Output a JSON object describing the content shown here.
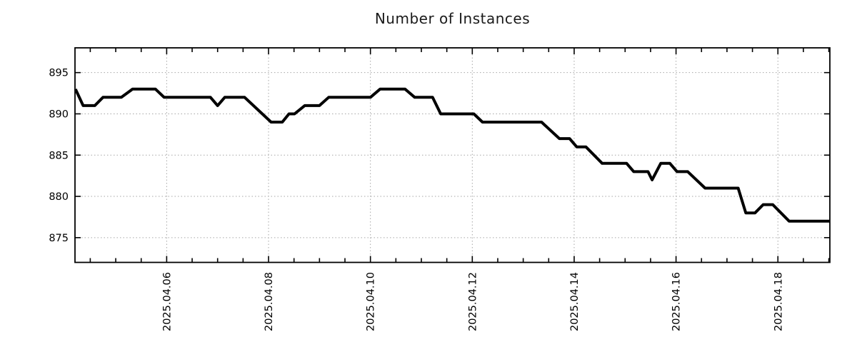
{
  "chart_data": {
    "type": "line",
    "title": "Number of Instances",
    "xlabel": "",
    "ylabel": "",
    "legend": "none",
    "grid": "dotted-major",
    "x_unit": "day of April 2025 (decimal)",
    "x_range": [
      4.2,
      19.02
    ],
    "y_range": [
      872,
      898
    ],
    "x_major_ticks": [
      {
        "value": 6,
        "label": "2025.04.06"
      },
      {
        "value": 8,
        "label": "2025.04.08"
      },
      {
        "value": 10,
        "label": "2025.04.10"
      },
      {
        "value": 12,
        "label": "2025.04.12"
      },
      {
        "value": 14,
        "label": "2025.04.14"
      },
      {
        "value": 16,
        "label": "2025.04.16"
      },
      {
        "value": 18,
        "label": "2025.04.18"
      }
    ],
    "x_minor_tick_step": 0.5,
    "y_ticks": [
      875,
      880,
      885,
      890,
      895
    ],
    "series": [
      {
        "name": "instances",
        "color": "#000000",
        "points": [
          [
            4.21,
            893
          ],
          [
            4.36,
            891
          ],
          [
            4.59,
            891
          ],
          [
            4.75,
            892
          ],
          [
            5.11,
            892
          ],
          [
            5.33,
            893
          ],
          [
            5.78,
            893
          ],
          [
            5.95,
            892
          ],
          [
            6.86,
            892
          ],
          [
            7.0,
            891
          ],
          [
            7.14,
            892
          ],
          [
            7.53,
            892
          ],
          [
            8.05,
            889
          ],
          [
            8.27,
            889
          ],
          [
            8.4,
            890
          ],
          [
            8.51,
            890
          ],
          [
            8.71,
            891
          ],
          [
            9.0,
            891
          ],
          [
            9.18,
            892
          ],
          [
            10.0,
            892
          ],
          [
            10.19,
            893
          ],
          [
            10.68,
            893
          ],
          [
            10.87,
            892
          ],
          [
            11.22,
            892
          ],
          [
            11.38,
            890
          ],
          [
            12.03,
            890
          ],
          [
            12.2,
            889
          ],
          [
            13.36,
            889
          ],
          [
            13.71,
            887
          ],
          [
            13.91,
            887
          ],
          [
            14.05,
            886
          ],
          [
            14.23,
            886
          ],
          [
            14.55,
            884
          ],
          [
            15.03,
            884
          ],
          [
            15.17,
            883
          ],
          [
            15.45,
            883
          ],
          [
            15.53,
            882
          ],
          [
            15.7,
            884
          ],
          [
            15.88,
            884
          ],
          [
            16.02,
            883
          ],
          [
            16.23,
            883
          ],
          [
            16.57,
            881
          ],
          [
            17.22,
            881
          ],
          [
            17.37,
            878
          ],
          [
            17.55,
            878
          ],
          [
            17.71,
            879
          ],
          [
            17.9,
            879
          ],
          [
            18.22,
            877
          ],
          [
            19.02,
            877
          ]
        ]
      }
    ]
  },
  "style": {
    "line_color": "#000000",
    "grid_color": "#a6a6a6",
    "border_color": "#000000",
    "text_color": "#000000",
    "background": "#ffffff",
    "tick_label_size": 14.5,
    "title_size": 20
  }
}
